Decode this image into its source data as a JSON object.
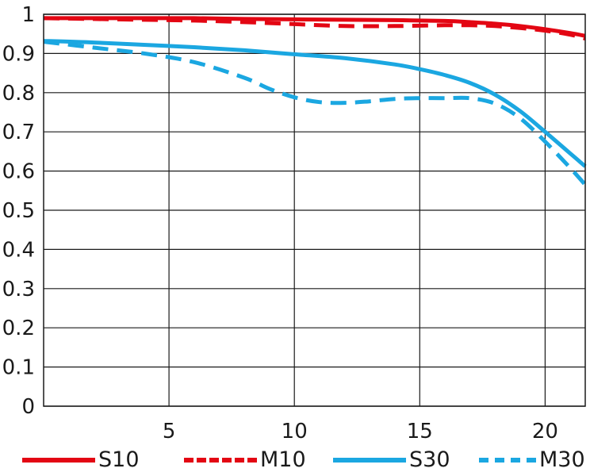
{
  "chart_data": {
    "type": "line",
    "title": "",
    "xlabel": "",
    "ylabel": "",
    "xlim": [
      0,
      21.6
    ],
    "ylim": [
      0,
      1
    ],
    "grid": true,
    "legend_position": "bottom",
    "x_ticks": [
      5,
      10,
      15,
      20
    ],
    "y_ticks": [
      0,
      0.1,
      0.2,
      0.3,
      0.4,
      0.5,
      0.6,
      0.7,
      0.8,
      0.9,
      1
    ],
    "x_tick_labels": [
      "5",
      "10",
      "15",
      "20"
    ],
    "y_tick_labels": [
      "0",
      "0.1",
      "0.2",
      "0.3",
      "0.4",
      "0.5",
      "0.6",
      "0.7",
      "0.8",
      "0.9",
      "1"
    ],
    "series": [
      {
        "name": "S10",
        "color": "#e30613",
        "dash": "solid",
        "x": [
          0,
          2,
          4,
          6,
          8,
          10,
          12,
          14,
          16,
          17,
          18,
          19,
          20,
          21,
          21.6
        ],
        "y": [
          0.99,
          0.99,
          0.99,
          0.99,
          0.988,
          0.987,
          0.986,
          0.985,
          0.983,
          0.98,
          0.976,
          0.97,
          0.962,
          0.952,
          0.945
        ]
      },
      {
        "name": "M10",
        "color": "#e30613",
        "dash": "dashed",
        "x": [
          0,
          2,
          4,
          6,
          8,
          10,
          12,
          14,
          16,
          17,
          18,
          19,
          20,
          21,
          21.6
        ],
        "y": [
          0.99,
          0.988,
          0.986,
          0.984,
          0.98,
          0.975,
          0.97,
          0.97,
          0.972,
          0.972,
          0.97,
          0.965,
          0.958,
          0.948,
          0.938
        ]
      },
      {
        "name": "S30",
        "color": "#1ba7e1",
        "dash": "solid",
        "x": [
          0,
          2,
          4,
          6,
          8,
          10,
          12,
          14,
          15,
          16,
          17,
          18,
          19,
          20,
          21,
          21.6
        ],
        "y": [
          0.932,
          0.928,
          0.922,
          0.916,
          0.908,
          0.898,
          0.888,
          0.872,
          0.86,
          0.845,
          0.825,
          0.795,
          0.753,
          0.7,
          0.645,
          0.612
        ]
      },
      {
        "name": "M30",
        "color": "#1ba7e1",
        "dash": "dashed",
        "x": [
          0,
          2,
          4,
          6,
          8,
          9,
          10,
          11,
          12,
          13,
          14,
          15,
          16,
          17,
          18,
          19,
          20,
          21,
          21.6
        ],
        "y": [
          0.93,
          0.915,
          0.9,
          0.878,
          0.838,
          0.81,
          0.788,
          0.776,
          0.774,
          0.778,
          0.784,
          0.786,
          0.786,
          0.786,
          0.772,
          0.735,
          0.675,
          0.608,
          0.565
        ]
      }
    ]
  }
}
